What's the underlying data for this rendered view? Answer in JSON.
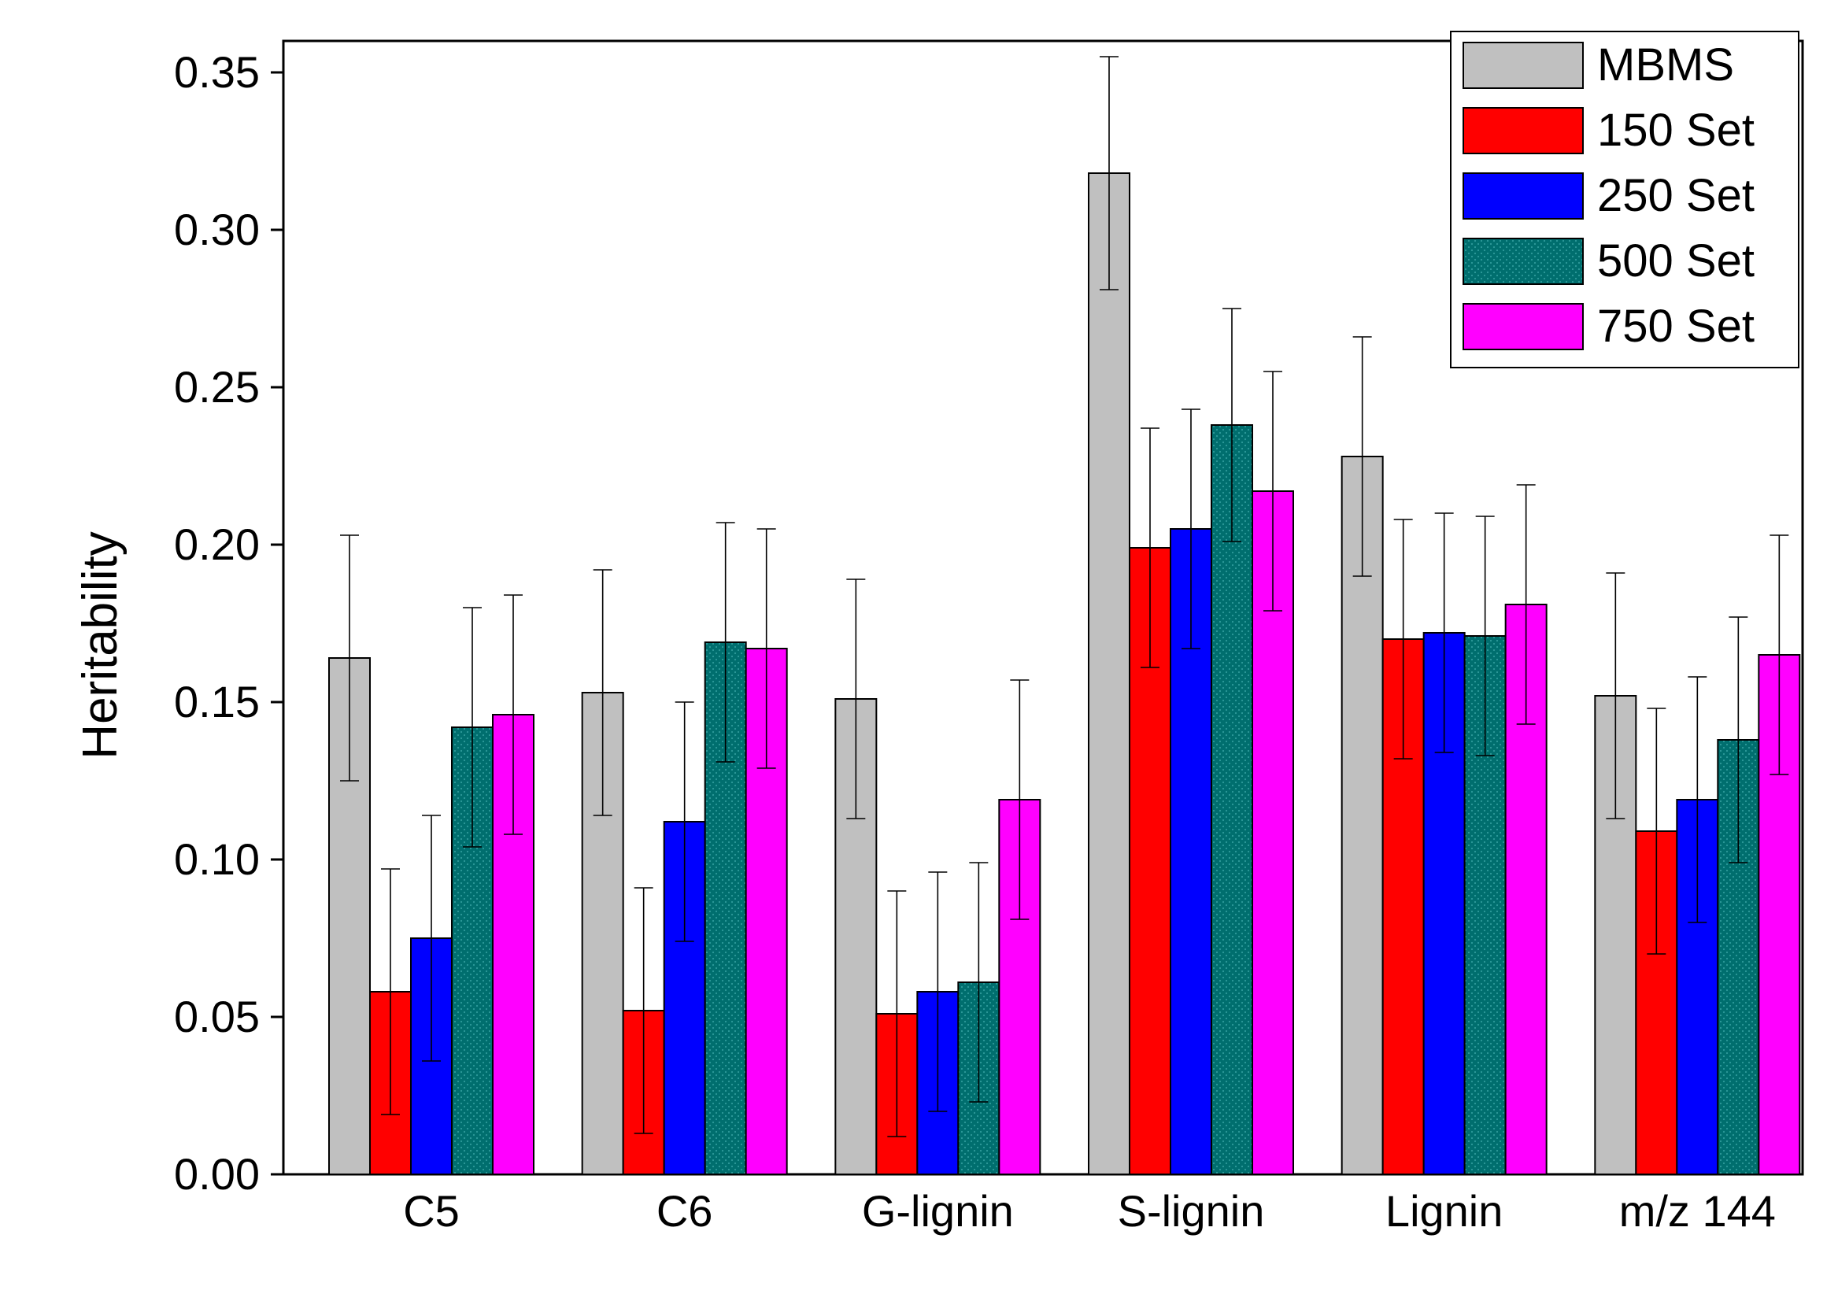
{
  "chart_data": {
    "type": "bar",
    "title": "",
    "xlabel": "",
    "ylabel": "Heritability",
    "ylim": [
      0,
      0.36
    ],
    "yticks": [
      0.0,
      0.05,
      0.1,
      0.15,
      0.2,
      0.25,
      0.3,
      0.35
    ],
    "ytick_labels": [
      "0.00",
      "0.05",
      "0.10",
      "0.15",
      "0.20",
      "0.25",
      "0.30",
      "0.35"
    ],
    "grid": false,
    "legend_position": "top-right",
    "categories": [
      "C5",
      "C6",
      "G-lignin",
      "S-lignin",
      "Lignin",
      "m/z 144"
    ],
    "series": [
      {
        "name": "MBMS",
        "color": "#c0c0c0",
        "pattern": "none",
        "values": [
          0.164,
          0.153,
          0.151,
          0.318,
          0.228,
          0.152
        ],
        "errors": [
          0.039,
          0.039,
          0.038,
          0.037,
          0.038,
          0.039
        ]
      },
      {
        "name": "150 Set",
        "color": "#ff0000",
        "pattern": "none",
        "values": [
          0.058,
          0.052,
          0.051,
          0.199,
          0.17,
          0.109
        ],
        "errors": [
          0.039,
          0.039,
          0.039,
          0.038,
          0.038,
          0.039
        ]
      },
      {
        "name": "250 Set",
        "color": "#0000ff",
        "pattern": "none",
        "values": [
          0.075,
          0.112,
          0.058,
          0.205,
          0.172,
          0.119
        ],
        "errors": [
          0.039,
          0.038,
          0.038,
          0.038,
          0.038,
          0.039
        ]
      },
      {
        "name": "500 Set",
        "color": "#006e6e",
        "pattern": "dots",
        "values": [
          0.142,
          0.169,
          0.061,
          0.238,
          0.171,
          0.138
        ],
        "errors": [
          0.038,
          0.038,
          0.038,
          0.037,
          0.038,
          0.039
        ]
      },
      {
        "name": "750 Set",
        "color": "#ff00ff",
        "pattern": "none",
        "values": [
          0.146,
          0.167,
          0.119,
          0.217,
          0.181,
          0.165
        ],
        "errors": [
          0.038,
          0.038,
          0.038,
          0.038,
          0.038,
          0.038
        ]
      }
    ]
  }
}
